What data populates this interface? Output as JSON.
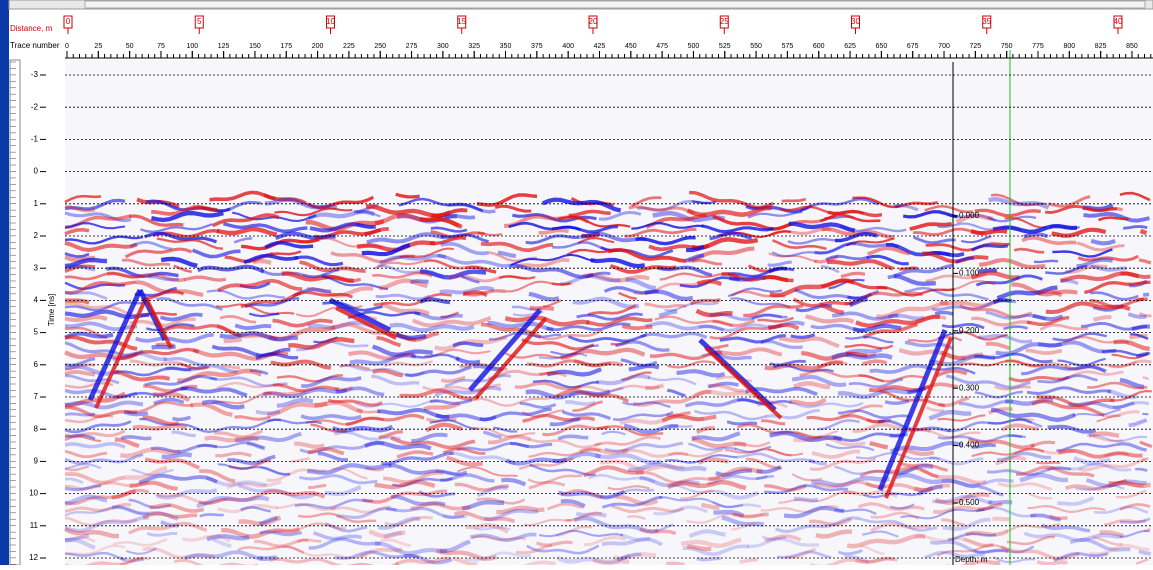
{
  "distance_axis": {
    "label": "Distance, m",
    "ticks": [
      0,
      5,
      10,
      15,
      20,
      25,
      30,
      35,
      40
    ]
  },
  "trace_axis": {
    "label": "Trace number",
    "ticks": [
      0,
      25,
      50,
      75,
      100,
      125,
      150,
      175,
      200,
      225,
      250,
      275,
      300,
      325,
      350,
      375,
      400,
      425,
      450,
      475,
      500,
      525,
      550,
      575,
      600,
      625,
      650,
      675,
      700,
      725,
      750,
      775,
      800,
      825,
      850
    ]
  },
  "time_axis": {
    "label": "Time [ns]",
    "ticks": [
      -3,
      -2,
      -1,
      0,
      1,
      2,
      3,
      4,
      5,
      6,
      7,
      8,
      9,
      10,
      11,
      12
    ]
  },
  "depth_axis": {
    "label": "Depth, m",
    "ticks": [
      {
        "value": 0,
        "label": "0.000"
      },
      {
        "value": 0.1,
        "label": "0.100"
      },
      {
        "value": 0.2,
        "label": "0.200"
      },
      {
        "value": 0.3,
        "label": "0.300"
      },
      {
        "value": 0.4,
        "label": "0.400"
      },
      {
        "value": 0.5,
        "label": "0.500"
      }
    ]
  }
}
